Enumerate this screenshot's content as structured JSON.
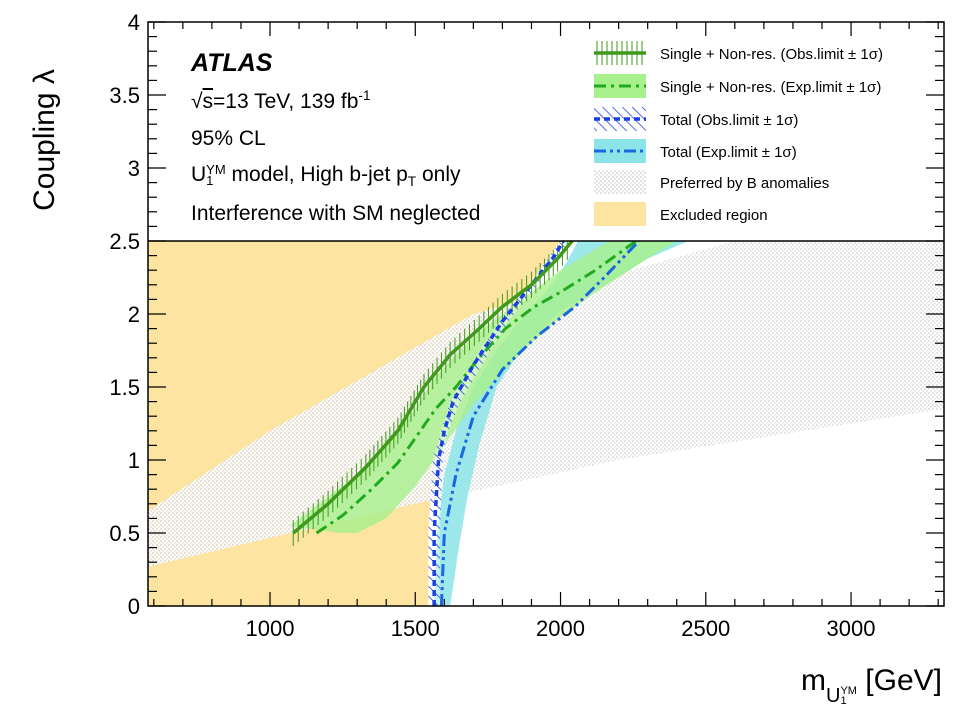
{
  "experiment": "ATLAS",
  "info_lines": {
    "energy_prefix": "√",
    "energy_s": "s",
    "energy_text": "=13 TeV, 139 fb",
    "energy_sup": "-1",
    "cl": "95% CL",
    "model_u": "U",
    "model_sup": "YM",
    "model_sub": "1",
    "model_text": " model, High b-jet p",
    "model_text_sub": "T",
    "model_tail": " only",
    "interference": "Interference with SM neglected"
  },
  "colors": {
    "obs_single": "#3d9a1b",
    "exp_single": "#1faa1f",
    "exp_single_band": "#a8f08c",
    "obs_total": "#1b3fe0",
    "exp_total": "#1b67e0",
    "exp_total_band": "#8ce4e8",
    "preferred": "#d4d4d4",
    "excluded": "#fde4a0"
  },
  "chart_data": {
    "type": "line",
    "xlabel_main": "m",
    "xlabel_sub": "U",
    "xlabel_subsup": "YM",
    "xlabel_subsub": "1",
    "xlabel_unit": " [GeV]",
    "ylabel": "Coupling λ",
    "xlim": [
      580,
      3320
    ],
    "ylim": [
      0,
      4
    ],
    "x_ticks": [
      1000,
      1500,
      2000,
      2500,
      3000
    ],
    "y_ticks": [
      0,
      0.5,
      1,
      1.5,
      2,
      2.5,
      3,
      3.5,
      4
    ],
    "x_tick_labels": [
      "1000",
      "1500",
      "2000",
      "2500",
      "3000"
    ],
    "y_tick_labels": [
      "0",
      "0.5",
      "1",
      "1.5",
      "2",
      "2.5",
      "3",
      "3.5",
      "4"
    ],
    "plot_ymax_data": 2.5,
    "legend": [
      {
        "key": "obs_single",
        "label": "Single + Non-res. (Obs.limit ± 1σ)"
      },
      {
        "key": "exp_single",
        "label": "Single + Non-res. (Exp.limit ± 1σ)"
      },
      {
        "key": "obs_total",
        "label": "Total (Obs.limit ± 1σ)"
      },
      {
        "key": "exp_total",
        "label": "Total (Exp.limit ± 1σ)"
      },
      {
        "key": "preferred",
        "label": "Preferred by B anomalies"
      },
      {
        "key": "excluded",
        "label": "Excluded region"
      }
    ],
    "series": [
      {
        "key": "obs_single",
        "x": [
          1080,
          1200,
          1330,
          1440,
          1530,
          1620,
          1720,
          1800,
          1900,
          1990,
          2040
        ],
        "y": [
          0.5,
          0.7,
          0.95,
          1.2,
          1.5,
          1.72,
          1.9,
          2.05,
          2.2,
          2.38,
          2.5
        ]
      },
      {
        "key": "exp_single",
        "x": [
          1160,
          1250,
          1350,
          1440,
          1500,
          1570,
          1640,
          1720,
          1810,
          1910,
          2000,
          2120,
          2260
        ],
        "y": [
          0.5,
          0.62,
          0.8,
          0.98,
          1.15,
          1.35,
          1.5,
          1.7,
          1.9,
          2.05,
          2.15,
          2.3,
          2.5
        ]
      },
      {
        "key": "exp_single_band",
        "upper_x": [
          1070,
          1300,
          1400,
          1500,
          1560,
          1640,
          1720,
          1800,
          1900,
          2000,
          2100,
          2170
        ],
        "upper_y": [
          0.55,
          0.9,
          1.1,
          1.35,
          1.55,
          1.72,
          1.88,
          2.0,
          2.15,
          2.3,
          2.42,
          2.5
        ],
        "lower_x": [
          2400,
          2300,
          2200,
          2100,
          2000,
          1900,
          1800,
          1700,
          1600,
          1500,
          1400,
          1300,
          1240
        ],
        "lower_y": [
          2.5,
          2.38,
          2.25,
          2.12,
          1.98,
          1.8,
          1.6,
          1.38,
          1.1,
          0.82,
          0.6,
          0.5,
          0.5
        ]
      },
      {
        "key": "obs_total",
        "x": [
          1565,
          1565,
          1580,
          1600,
          1630,
          1700,
          1800,
          1900,
          1980,
          2010
        ],
        "y": [
          0,
          0.5,
          1.0,
          1.2,
          1.4,
          1.65,
          1.95,
          2.2,
          2.4,
          2.5
        ]
      },
      {
        "key": "obs_total_band",
        "upper_x": [
          1545,
          1545,
          1560,
          1590,
          1620,
          1700,
          1800,
          1900,
          1970,
          2000
        ],
        "upper_y": [
          0,
          0.5,
          1.0,
          1.2,
          1.4,
          1.68,
          1.98,
          2.22,
          2.42,
          2.5
        ],
        "lower_x": [
          2030,
          1990,
          1920,
          1820,
          1720,
          1650,
          1610,
          1595,
          1585,
          1585
        ],
        "lower_y": [
          2.5,
          2.4,
          2.2,
          1.95,
          1.62,
          1.38,
          1.18,
          1.0,
          0.5,
          0
        ]
      },
      {
        "key": "exp_total",
        "x": [
          1590,
          1600,
          1640,
          1700,
          1800,
          1920,
          2050,
          2150,
          2270
        ],
        "y": [
          0,
          0.5,
          0.9,
          1.3,
          1.62,
          1.85,
          2.05,
          2.25,
          2.5
        ]
      },
      {
        "key": "exp_total_band",
        "upper_x": [
          1565,
          1575,
          1600,
          1640,
          1700,
          1780,
          1860,
          1950,
          2020,
          2060
        ],
        "upper_y": [
          0,
          0.5,
          0.9,
          1.2,
          1.5,
          1.75,
          1.95,
          2.15,
          2.35,
          2.5
        ],
        "lower_x": [
          2440,
          2300,
          2150,
          2000,
          1880,
          1780,
          1720,
          1680,
          1650,
          1620
        ],
        "lower_y": [
          2.5,
          2.38,
          2.2,
          2.02,
          1.8,
          1.5,
          1.1,
          0.75,
          0.4,
          0
        ]
      },
      {
        "key": "preferred",
        "x": [
          580,
          1500,
          2200,
          3320,
          3320,
          2600,
          1700,
          1000,
          580
        ],
        "y": [
          0.27,
          0.7,
          1.0,
          1.35,
          2.5,
          2.5,
          2.0,
          1.2,
          0.65
        ]
      },
      {
        "key": "excluded",
        "x": [
          580,
          1545,
          1545,
          1560,
          1590,
          1620,
          1700,
          1800,
          1900,
          1970,
          2000,
          580
        ],
        "y": [
          0,
          0,
          0.5,
          1.0,
          1.2,
          1.4,
          1.68,
          1.98,
          2.22,
          2.42,
          2.5,
          2.5
        ]
      }
    ]
  }
}
